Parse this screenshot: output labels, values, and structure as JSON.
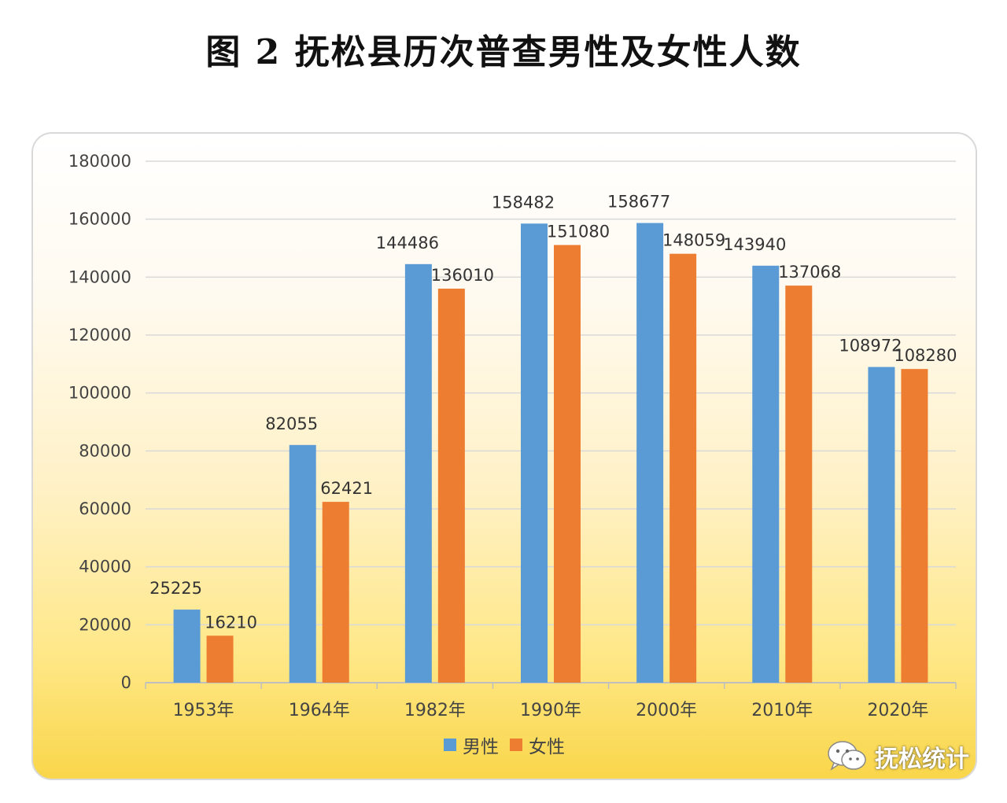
{
  "figure_title": "图 2    抚松县历次普查男性及女性人数",
  "colors": {
    "male": "#5b9bd5",
    "female": "#ed7d31",
    "grid": "#d9d9d9",
    "axis": "#bfbfbf"
  },
  "chart_data": {
    "type": "bar",
    "title": "图 2    抚松县历次普查男性及女性人数",
    "xlabel": "",
    "ylabel": "",
    "ylim": [
      0,
      180000
    ],
    "yticks": [
      "0",
      "20000",
      "40000",
      "60000",
      "80000",
      "100000",
      "120000",
      "140000",
      "160000",
      "180000"
    ],
    "ytick_values": [
      0,
      20000,
      40000,
      60000,
      80000,
      100000,
      120000,
      140000,
      160000,
      180000
    ],
    "categories": [
      "1953年",
      "1964年",
      "1982年",
      "1990年",
      "2000年",
      "2010年",
      "2020年"
    ],
    "series": [
      {
        "name": "男性",
        "values": [
          25225,
          82055,
          144486,
          158482,
          158677,
          143940,
          108972
        ]
      },
      {
        "name": "女性",
        "values": [
          16210,
          62421,
          136010,
          151080,
          148059,
          137068,
          108280
        ]
      }
    ],
    "grid": true,
    "legend_position": "bottom-center"
  },
  "legend": {
    "male_label": "男性",
    "female_label": "女性"
  },
  "watermark": {
    "text": "抚松统计",
    "icon": "wechat-icon"
  }
}
